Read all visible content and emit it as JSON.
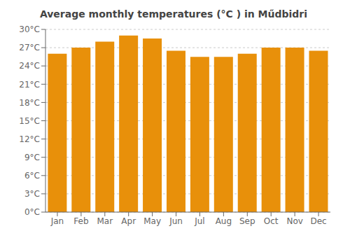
{
  "chart_data": {
    "type": "bar",
    "title": "Average monthly temperatures (°C ) in Műdbidri",
    "categories": [
      "Jan",
      "Feb",
      "Mar",
      "Apr",
      "May",
      "Jun",
      "Jul",
      "Aug",
      "Sep",
      "Oct",
      "Nov",
      "Dec"
    ],
    "values": [
      26.0,
      27.0,
      28.0,
      29.0,
      28.5,
      26.5,
      25.5,
      25.5,
      26.0,
      27.0,
      27.0,
      26.5
    ],
    "color": "#E8900A",
    "ylim": [
      0,
      30
    ],
    "yticks": [
      {
        "value": 0,
        "label": "0°C"
      },
      {
        "value": 3,
        "label": "3°C"
      },
      {
        "value": 6,
        "label": "6°C"
      },
      {
        "value": 9,
        "label": "9°C"
      },
      {
        "value": 12,
        "label": "12°C"
      },
      {
        "value": 15,
        "label": "15°C"
      },
      {
        "value": 18,
        "label": "18°C"
      },
      {
        "value": 21,
        "label": "21°C"
      },
      {
        "value": 24,
        "label": "24°C"
      },
      {
        "value": 27,
        "label": "27°C"
      },
      {
        "value": 30,
        "label": "30°C"
      }
    ],
    "grid": true
  }
}
